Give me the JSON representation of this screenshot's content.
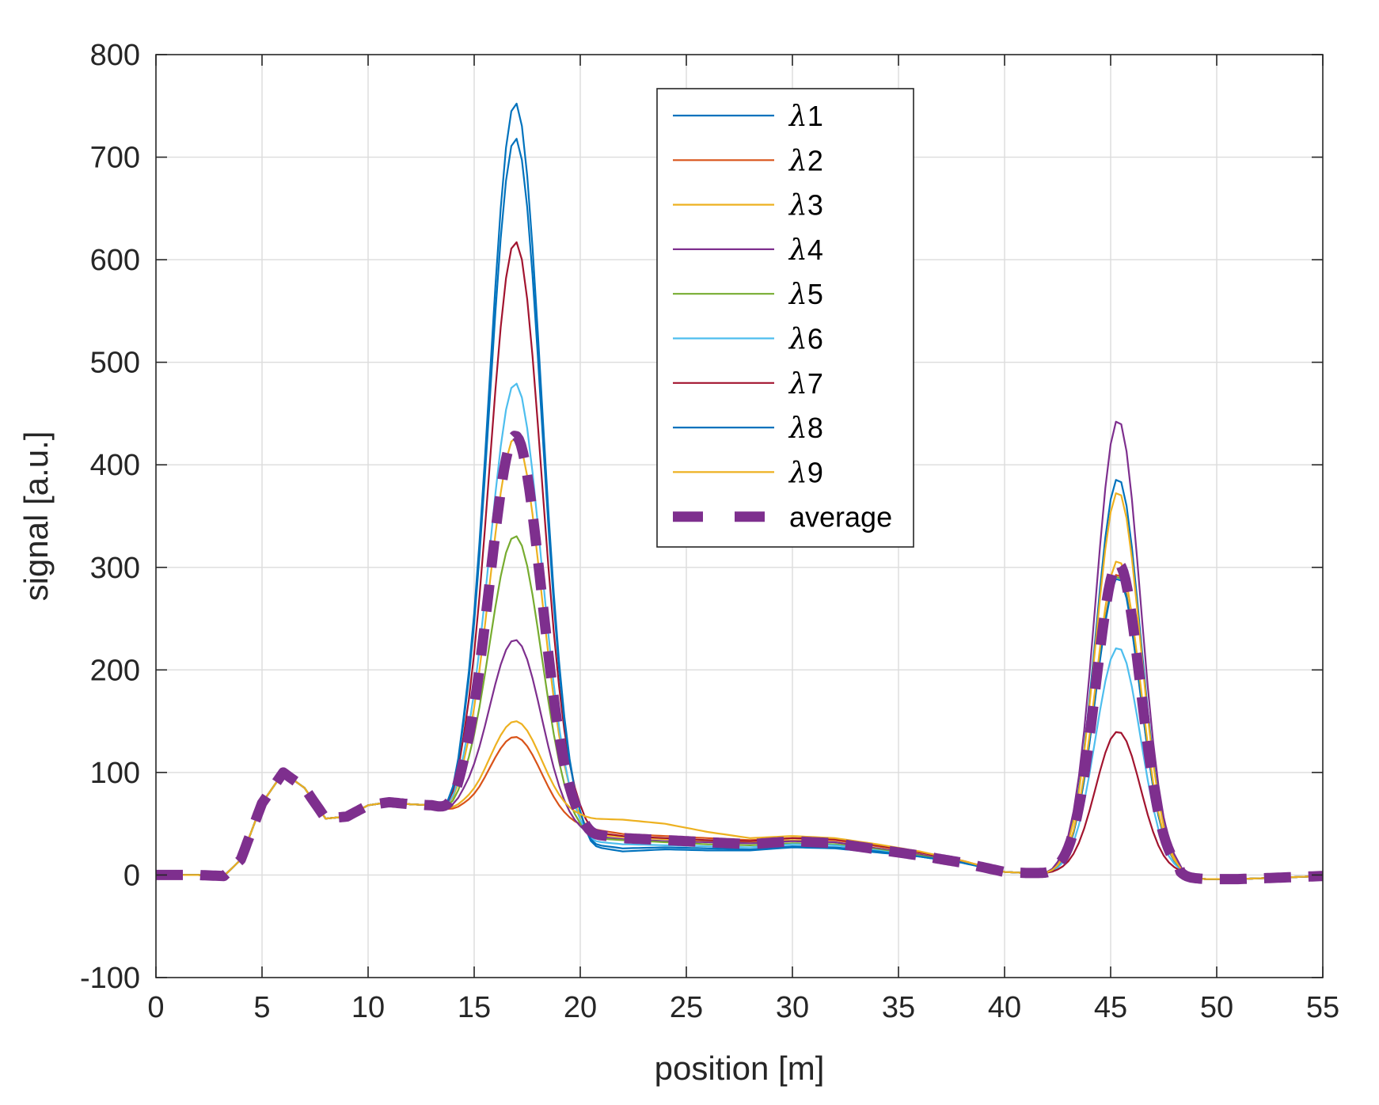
{
  "chart_data": {
    "type": "line",
    "xlabel": "position [m]",
    "ylabel": "signal [a.u.]",
    "xlim": [
      0,
      55
    ],
    "ylim": [
      -100,
      800
    ],
    "xticks": [
      0,
      5,
      10,
      15,
      20,
      25,
      30,
      35,
      40,
      45,
      50,
      55
    ],
    "yticks": [
      -100,
      0,
      100,
      200,
      300,
      400,
      500,
      600,
      700,
      800
    ],
    "xtick_labels": [
      "0",
      "5",
      "10",
      "15",
      "20",
      "25",
      "30",
      "35",
      "40",
      "45",
      "50",
      "55"
    ],
    "ytick_labels": [
      "-100",
      "0",
      "100",
      "200",
      "300",
      "400",
      "500",
      "600",
      "700",
      "800"
    ],
    "grid": true,
    "legend_position": "top-center",
    "series": [
      {
        "name": "λ1",
        "color": "#0072BD",
        "peak1": 725,
        "peak2": 385,
        "dip": 58,
        "tail": [
          28,
          23,
          25,
          24,
          24,
          27,
          26,
          22,
          18,
          12
        ]
      },
      {
        "name": "λ2",
        "color": "#D95319",
        "peak1": 103,
        "peak2": 292,
        "dip": 55,
        "tail": [
          45,
          40,
          38,
          36,
          34,
          36,
          34,
          28,
          22,
          14
        ]
      },
      {
        "name": "λ3",
        "color": "#EDB120",
        "peak1": 395,
        "peak2": 372,
        "dip": 58,
        "tail": [
          40,
          37,
          35,
          33,
          32,
          34,
          32,
          26,
          20,
          13
        ]
      },
      {
        "name": "λ4",
        "color": "#7E2F8E",
        "peak1": 198,
        "peak2": 442,
        "dip": 58,
        "tail": [
          38,
          35,
          33,
          32,
          31,
          33,
          32,
          26,
          20,
          13
        ]
      },
      {
        "name": "λ5",
        "color": "#77AC30",
        "peak1": 300,
        "peak2": 290,
        "dip": 58,
        "tail": [
          36,
          34,
          32,
          30,
          29,
          31,
          30,
          25,
          19,
          12
        ]
      },
      {
        "name": "λ6",
        "color": "#4DBEEE",
        "peak1": 450,
        "peak2": 220,
        "dip": 58,
        "tail": [
          33,
          30,
          29,
          28,
          27,
          30,
          29,
          24,
          18,
          12
        ]
      },
      {
        "name": "λ7",
        "color": "#A2142F",
        "peak1": 585,
        "peak2": 138,
        "dip": 58,
        "tail": [
          42,
          38,
          36,
          34,
          33,
          36,
          35,
          29,
          22,
          14
        ]
      },
      {
        "name": "λ8",
        "color": "#0072BD",
        "peak1": 690,
        "peak2": 288,
        "dip": 58,
        "tail": [
          30,
          26,
          27,
          26,
          25,
          28,
          27,
          23,
          18,
          12
        ]
      },
      {
        "name": "λ9",
        "color": "#EDB120",
        "peak1": 113,
        "peak2": 305,
        "dip": 58,
        "tail": [
          55,
          54,
          50,
          42,
          36,
          38,
          36,
          30,
          23,
          14
        ]
      },
      {
        "name": "average",
        "color": "#7E2F8E",
        "dashed": true,
        "peak1": 395,
        "peak2": 302,
        "dip": 60,
        "tail": [
          40,
          36,
          34,
          32,
          30,
          33,
          31,
          25,
          19,
          12
        ]
      }
    ],
    "common_profile": {
      "x": [
        0,
        2,
        3.2,
        4,
        5,
        6,
        7,
        8,
        9,
        10,
        11,
        12,
        13
      ],
      "y": [
        0,
        0,
        -1,
        15,
        70,
        100,
        85,
        55,
        57,
        68,
        71,
        69,
        68
      ]
    }
  }
}
